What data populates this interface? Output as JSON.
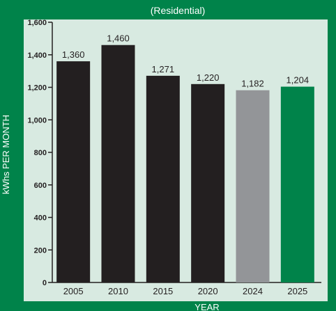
{
  "chart_data": {
    "type": "bar",
    "title": "(Residential)",
    "xlabel": "YEAR",
    "ylabel": "kWhs PER MONTH",
    "categories": [
      "2005",
      "2010",
      "2015",
      "2020",
      "2024",
      "2025"
    ],
    "values": [
      1360,
      1460,
      1271,
      1220,
      1182,
      1204
    ],
    "data_labels": [
      "1,360",
      "1,460",
      "1,271",
      "1,220",
      "1,182",
      "1,204"
    ],
    "bar_colors": [
      "#231f20",
      "#231f20",
      "#231f20",
      "#231f20",
      "#939598",
      "#00834a"
    ],
    "ylim": [
      0,
      1600
    ],
    "yticks": [
      0,
      200,
      400,
      600,
      800,
      1000,
      1200,
      1400,
      1600
    ],
    "ytick_labels": [
      "0",
      "200",
      "400",
      "600",
      "800",
      "1,000",
      "1,200",
      "1,400",
      "1,600"
    ],
    "grid": false,
    "colors": {
      "frame": "#00834a",
      "plot_background": "#d8eae1",
      "axis_text": "#231f20",
      "title_text": "#ffffff"
    }
  }
}
